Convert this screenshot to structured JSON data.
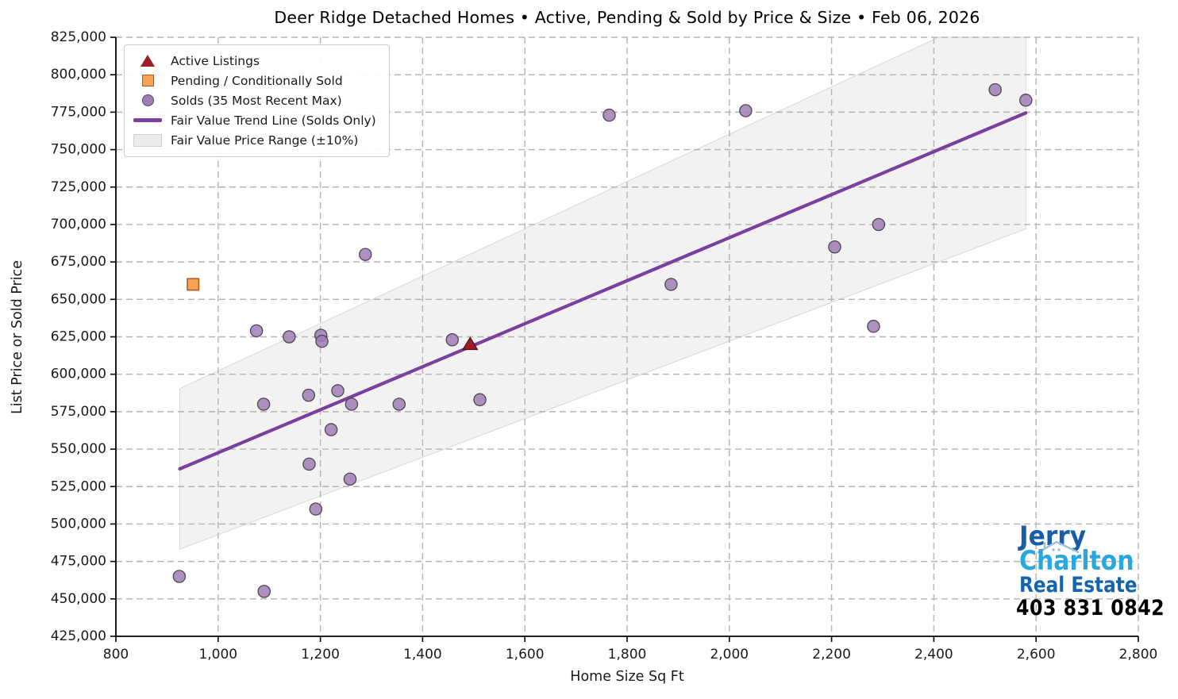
{
  "page": {
    "title": "Deer Ridge Detached Homes • Active, Pending & Sold by Price & Size • Feb 06, 2026"
  },
  "axes": {
    "x_label": "Home Size Sq Ft",
    "y_label": "List Price or Sold Price"
  },
  "legend": {
    "items": [
      {
        "id": "active",
        "label": "Active Listings",
        "marker": "triangle",
        "fill": "#A01C28",
        "edge": "#50101C"
      },
      {
        "id": "pending",
        "label": "Pending / Conditionally Sold",
        "marker": "square",
        "fill": "#F8A452",
        "edge": "#A85B20"
      },
      {
        "id": "solds",
        "label": "Solds (35 Most Recent Max)",
        "marker": "circle",
        "fill": "#A07CB8",
        "edge": "#4A4A4A"
      },
      {
        "id": "trend",
        "label": "Fair Value Trend Line (Solds Only)",
        "marker": "line",
        "fill": "#7B3F9E",
        "edge": "#7B3F9E"
      },
      {
        "id": "band",
        "label": "Fair Value Price Range (±10%)",
        "marker": "patch",
        "fill": "#EBEBEB",
        "edge": "#CFCFCF"
      }
    ]
  },
  "branding": {
    "name_line1": "Jerry",
    "name_line2": "Charlton",
    "name_line3": "Real Estate",
    "phone": "403 831 0842",
    "colors": {
      "line1": "#1B5CA8",
      "line2": "#29A8E0",
      "line3": "#1465AD",
      "phone": "#000000",
      "roof": "#9FC0D8"
    }
  },
  "chart_data": {
    "type": "scatter",
    "title": "Deer Ridge Detached Homes • Active, Pending & Sold by Price & Size • Feb 06, 2026",
    "xlabel": "Home Size Sq Ft",
    "ylabel": "List Price or Sold Price",
    "xlim": [
      800,
      2800
    ],
    "ylim": [
      425000,
      825000
    ],
    "x_ticks": [
      800,
      1000,
      1200,
      1400,
      1600,
      1800,
      2000,
      2200,
      2400,
      2600,
      2800
    ],
    "x_tick_labels": [
      "800",
      "1,000",
      "1,200",
      "1,400",
      "1,600",
      "1,800",
      "2,000",
      "2,200",
      "2,400",
      "2,600",
      "2,800"
    ],
    "y_ticks": [
      825000,
      800000,
      775000,
      750000,
      725000,
      700000,
      675000,
      650000,
      625000,
      600000,
      575000,
      550000,
      525000,
      500000,
      475000,
      450000,
      425000
    ],
    "y_tick_labels": [
      "825,000",
      "800,000",
      "775,000",
      "750,000",
      "725,000",
      "700,000",
      "675,000",
      "650,000",
      "625,000",
      "600,000",
      "575,000",
      "550,000",
      "525,000",
      "500,000",
      "475,000",
      "450,000",
      "425,000"
    ],
    "grid": true,
    "legend_position": "upper left",
    "colors": {
      "grid": "#B3B3B3",
      "spine": "#000000",
      "tick_text": "#1a1a1a"
    },
    "series": [
      {
        "name": "Fair Value Price Range (±10%)",
        "type": "band",
        "fill": "#E9E9E9",
        "fill_opacity": 0.6,
        "edge": "#D8D8D8",
        "basis": "trend",
        "upper_factor": 1.1,
        "lower_factor": 0.9
      },
      {
        "name": "Fair Value Trend Line (Solds Only)",
        "type": "line",
        "color": "#7B3F9E",
        "width": 4.2,
        "points": [
          [
            925,
            536800
          ],
          [
            2580,
            774500
          ]
        ]
      },
      {
        "name": "Solds (35 Most Recent Max)",
        "type": "scatter",
        "marker": "circle",
        "fill": "#A07CB8",
        "edge": "#4A4A4A",
        "points": [
          [
            924,
            465000
          ],
          [
            1075,
            629000
          ],
          [
            1089,
            580000
          ],
          [
            1090,
            455000
          ],
          [
            1139,
            625000
          ],
          [
            1177,
            586000
          ],
          [
            1178,
            540000
          ],
          [
            1191,
            510000
          ],
          [
            1201,
            626000
          ],
          [
            1203,
            622000
          ],
          [
            1221,
            563000
          ],
          [
            1234,
            589000
          ],
          [
            1258,
            530000
          ],
          [
            1261,
            580000
          ],
          [
            1288,
            680000
          ],
          [
            1354,
            580000
          ],
          [
            1458,
            623000
          ],
          [
            1512,
            583000
          ],
          [
            1765,
            773000
          ],
          [
            1886,
            660000
          ],
          [
            2032,
            776000
          ],
          [
            2206,
            685000
          ],
          [
            2282,
            632000
          ],
          [
            2292,
            700000
          ],
          [
            2520,
            790000
          ],
          [
            2580,
            783000
          ]
        ]
      },
      {
        "name": "Pending / Conditionally Sold",
        "type": "scatter",
        "marker": "square",
        "fill": "#F8A452",
        "edge": "#A85B20",
        "points": [
          [
            951,
            660000
          ]
        ]
      },
      {
        "name": "Active Listings",
        "type": "scatter",
        "marker": "triangle",
        "fill": "#A01C28",
        "edge": "#50101C",
        "points": [
          [
            1493,
            620000
          ]
        ]
      }
    ]
  }
}
